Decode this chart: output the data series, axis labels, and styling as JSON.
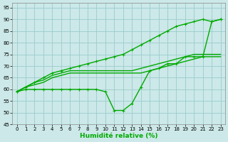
{
  "xlabel": "Humidité relative (%)",
  "bg_color": "#cce8e8",
  "grid_color": "#99cccc",
  "line_color": "#00aa00",
  "xlim": [
    -0.5,
    23.5
  ],
  "ylim": [
    45,
    97
  ],
  "yticks": [
    45,
    50,
    55,
    60,
    65,
    70,
    75,
    80,
    85,
    90,
    95
  ],
  "xticks": [
    0,
    1,
    2,
    3,
    4,
    5,
    6,
    7,
    8,
    9,
    10,
    11,
    12,
    13,
    14,
    15,
    16,
    17,
    18,
    19,
    20,
    21,
    22,
    23
  ],
  "series": [
    {
      "y": [
        59,
        61,
        63,
        65,
        67,
        68,
        69,
        70,
        71,
        72,
        73,
        74,
        75,
        77,
        79,
        81,
        83,
        85,
        87,
        88,
        89,
        90,
        89,
        90
      ],
      "ls": "-",
      "mk": "+",
      "ms": 3,
      "lw": 1.0
    },
    {
      "y": [
        59,
        61,
        63,
        64,
        66,
        67,
        68,
        68,
        68,
        68,
        68,
        68,
        68,
        68,
        69,
        70,
        71,
        72,
        73,
        74,
        75,
        75,
        75,
        75
      ],
      "ls": "-",
      "mk": null,
      "ms": 0,
      "lw": 1.0
    },
    {
      "y": [
        59,
        61,
        62,
        63,
        65,
        66,
        67,
        67,
        67,
        67,
        67,
        67,
        67,
        67,
        67,
        68,
        69,
        70,
        71,
        72,
        73,
        74,
        74,
        74
      ],
      "ls": "-",
      "mk": null,
      "ms": 0,
      "lw": 1.0
    },
    {
      "y": [
        59,
        60,
        60,
        60,
        60,
        60,
        60,
        60,
        60,
        60,
        59,
        51,
        51,
        54,
        61,
        68,
        69,
        71,
        71,
        74,
        74,
        74,
        89,
        90
      ],
      "ls": "-",
      "mk": "+",
      "ms": 3,
      "lw": 1.0
    }
  ]
}
